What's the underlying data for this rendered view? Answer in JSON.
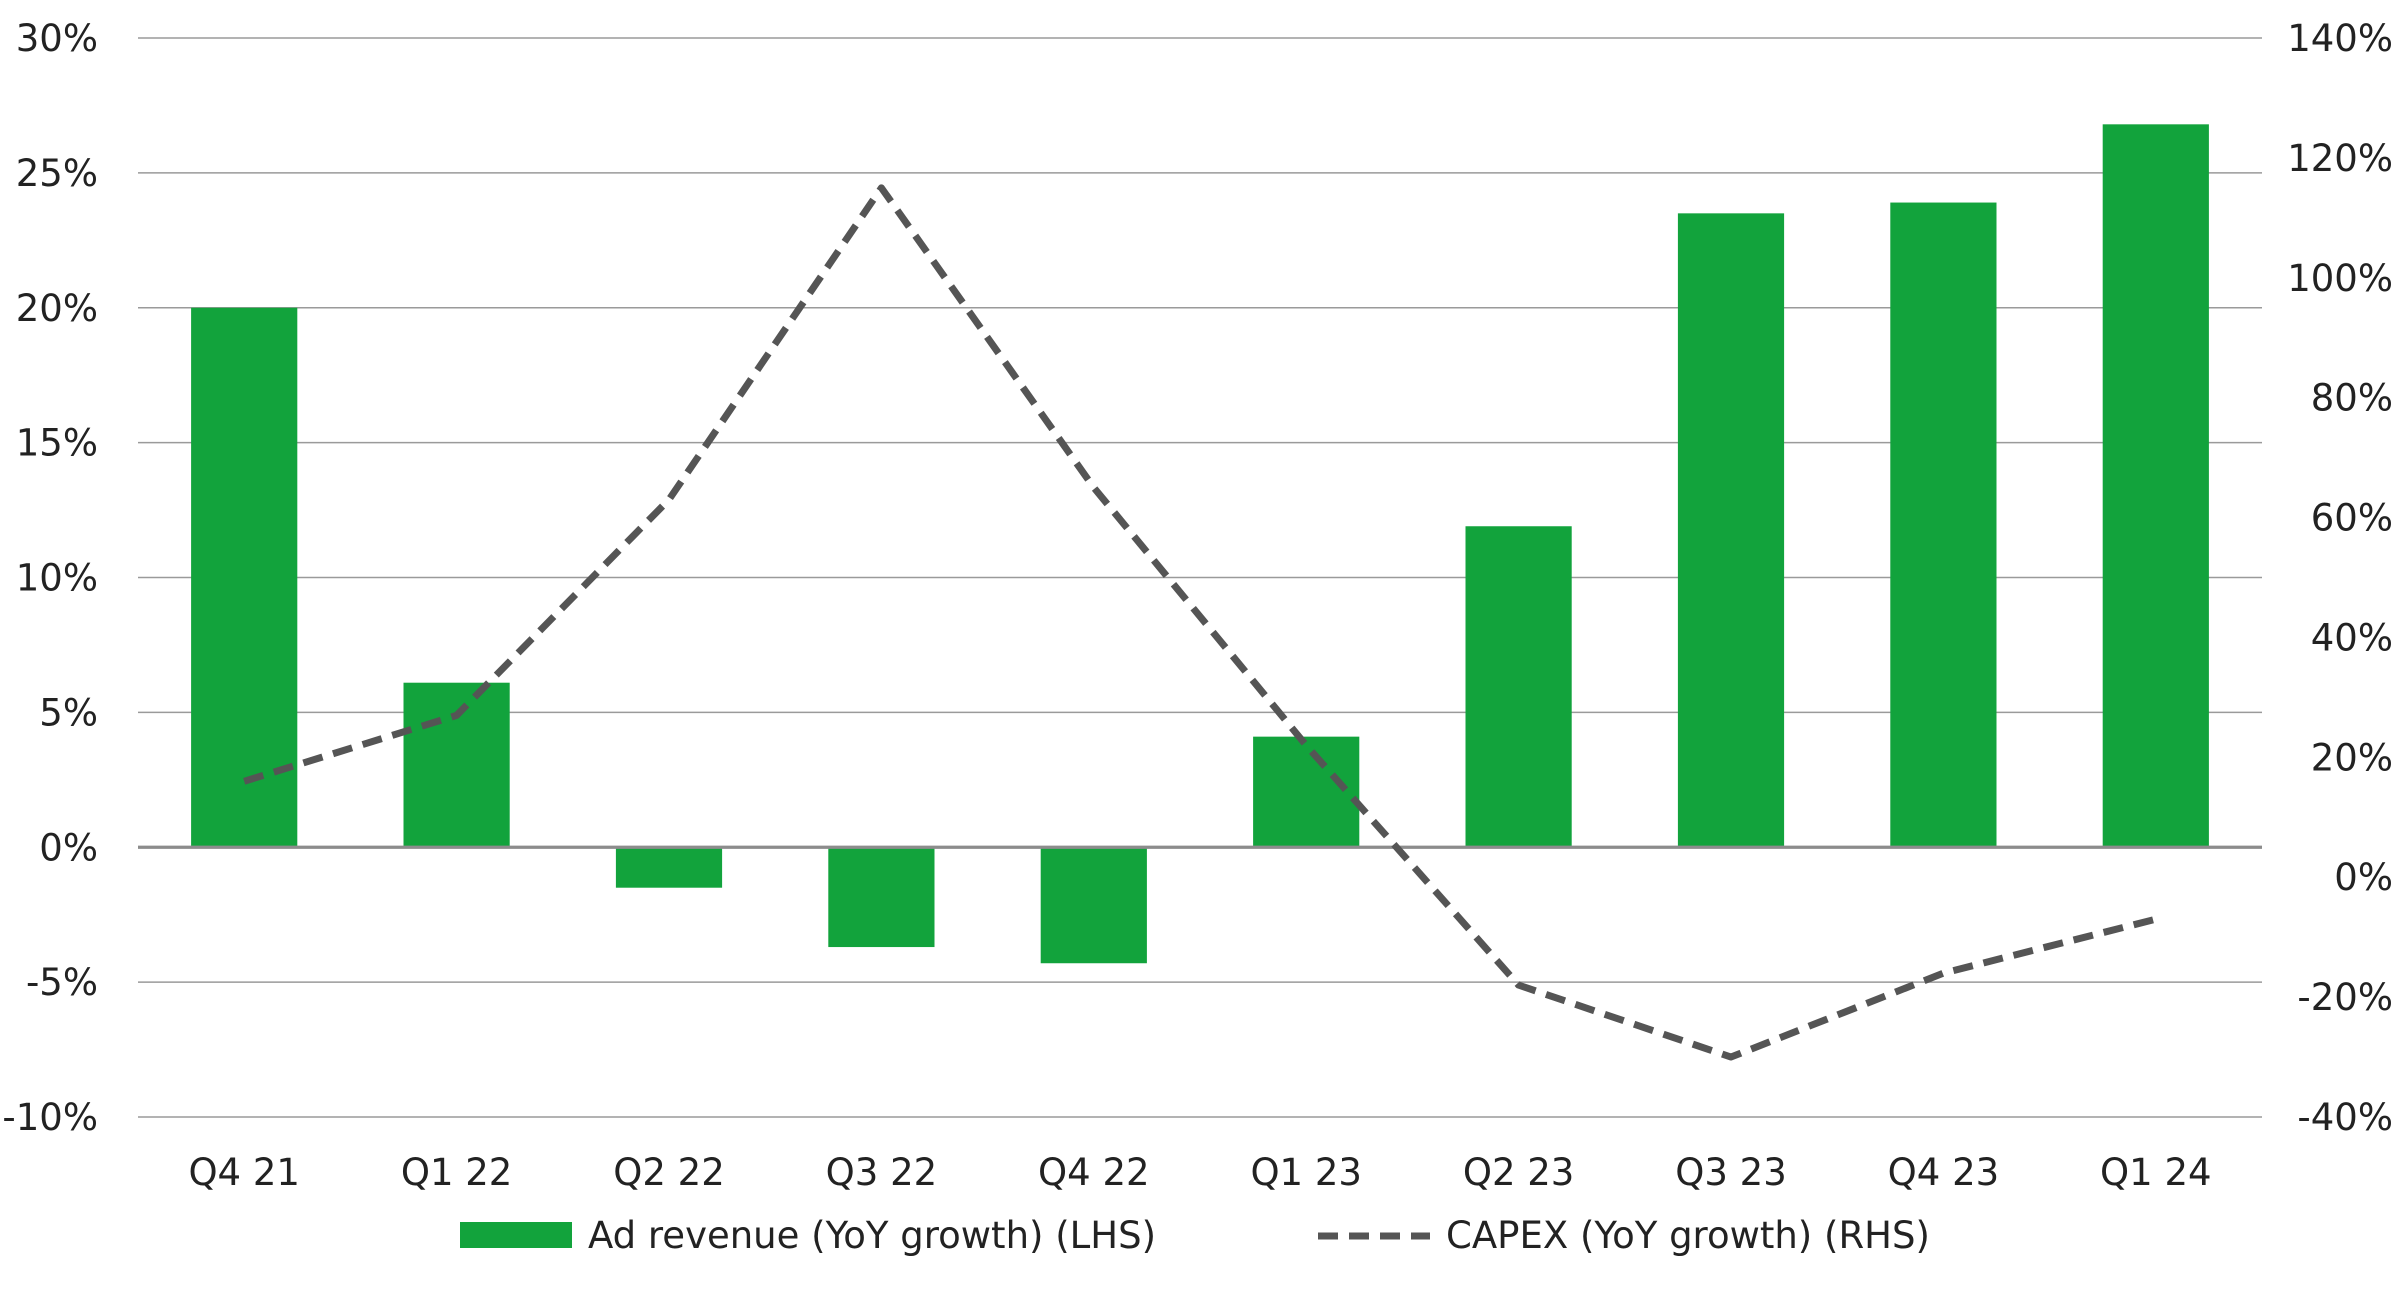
{
  "chart_data": {
    "type": "bar",
    "title": "",
    "categories": [
      "Q4 21",
      "Q1 22",
      "Q2 22",
      "Q3 22",
      "Q4 22",
      "Q1 23",
      "Q2 23",
      "Q3 23",
      "Q4 23",
      "Q1 24"
    ],
    "series": [
      {
        "name": "Ad revenue (YoY growth) (LHS)",
        "type": "bar",
        "axis": "left",
        "color": "#12A33C",
        "values": [
          20.0,
          6.1,
          -1.5,
          -3.7,
          -4.3,
          4.1,
          11.9,
          23.5,
          23.9,
          26.8
        ]
      },
      {
        "name": "CAPEX (YoY growth) (RHS)",
        "type": "line",
        "style": "dashed",
        "axis": "right",
        "color": "#555555",
        "values": [
          16,
          27,
          63,
          115,
          65,
          22,
          -18,
          -30,
          -16,
          -7
        ]
      }
    ],
    "y_left": {
      "min": -10,
      "max": 30,
      "step": 5,
      "ticks": [
        "-10%",
        "-5%",
        "0%",
        "5%",
        "10%",
        "15%",
        "20%",
        "25%",
        "30%"
      ]
    },
    "y_right": {
      "min": -40,
      "max": 140,
      "step": 20,
      "ticks": [
        "-40%",
        "-20%",
        "0%",
        "20%",
        "40%",
        "60%",
        "80%",
        "100%",
        "120%",
        "140%"
      ]
    },
    "grid": true,
    "legend_position": "bottom"
  }
}
